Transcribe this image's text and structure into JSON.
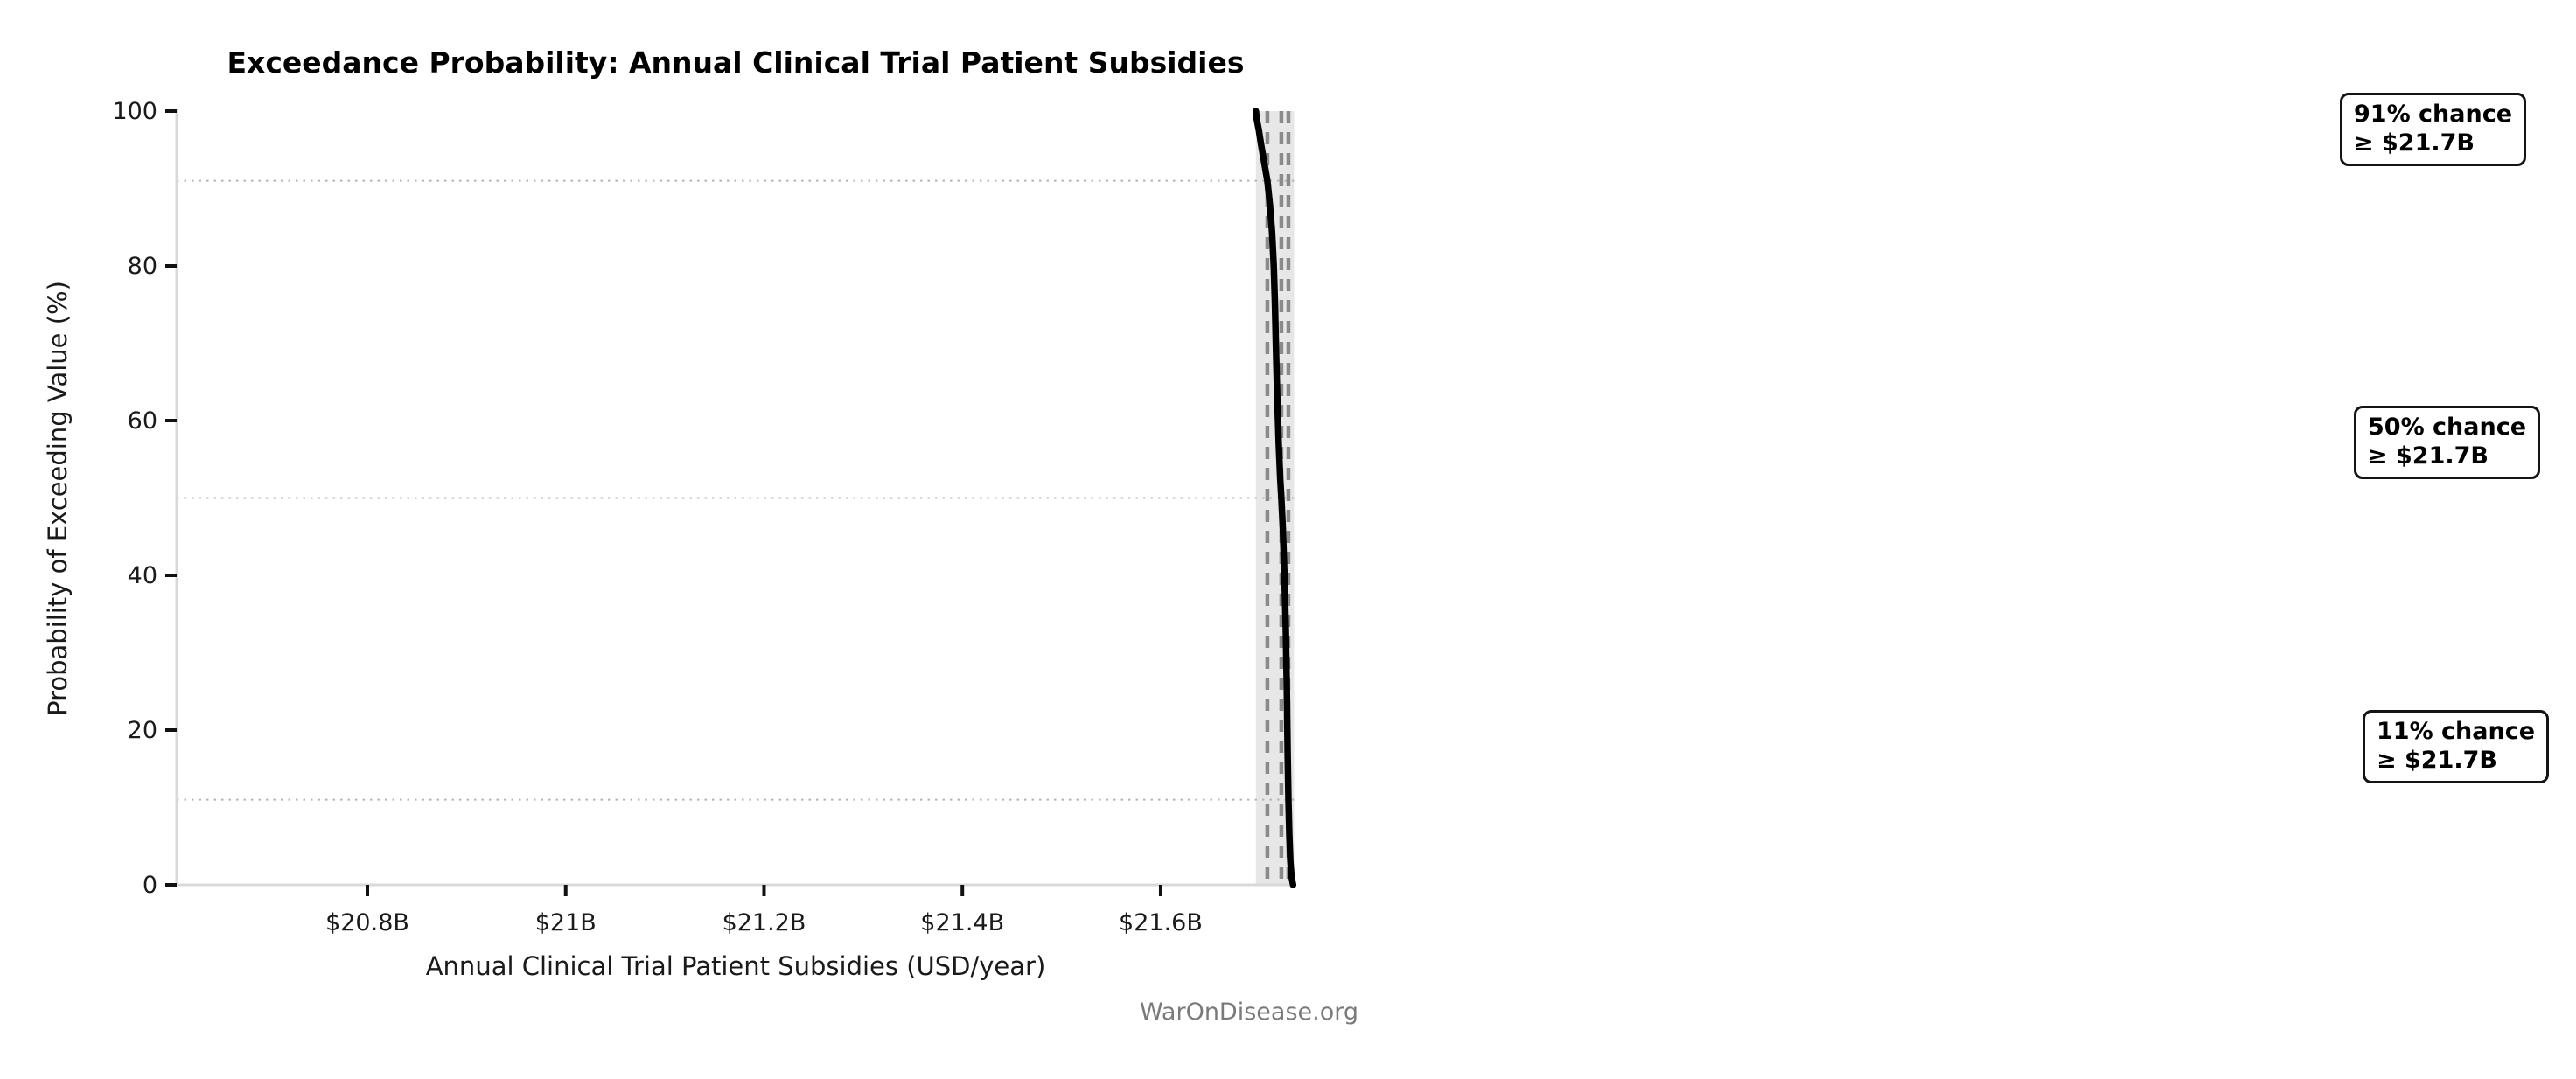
{
  "page": {
    "watermark": "WarOnDisease.org",
    "background_color": "#ffffff"
  },
  "chart_data": {
    "type": "line",
    "subtype": "exceedance-probability-curve",
    "title": "Exceedance Probability: Annual Clinical Trial Patient Subsidies",
    "xlabel": "Annual Clinical Trial Patient Subsidies (USD/year)",
    "ylabel": "Probability of Exceeding Value (%)",
    "x_unit": "USD billions per year",
    "xlim": [
      20.6077,
      21.735
    ],
    "ylim": [
      0,
      100
    ],
    "x_ticks": [
      {
        "value": 20.8,
        "label": "$20.8B"
      },
      {
        "value": 21.0,
        "label": "$21B"
      },
      {
        "value": 21.2,
        "label": "$21.2B"
      },
      {
        "value": 21.4,
        "label": "$21.4B"
      },
      {
        "value": 21.6,
        "label": "$21.6B"
      }
    ],
    "y_ticks": [
      {
        "value": 0,
        "label": "0"
      },
      {
        "value": 20,
        "label": "20"
      },
      {
        "value": 40,
        "label": "40"
      },
      {
        "value": 60,
        "label": "60"
      },
      {
        "value": 80,
        "label": "80"
      },
      {
        "value": 100,
        "label": "100"
      }
    ],
    "legend": "none",
    "grid": "dotted horizontal lines at annotated probabilities",
    "h_gridlines_pct": [
      91,
      50,
      11
    ],
    "v_reference_lines": [
      {
        "value_billion": 21.7076,
        "probability_pct": 91,
        "label": "$21.7B"
      },
      {
        "value_billion": 21.7217,
        "probability_pct": 50,
        "label": "$21.7B"
      },
      {
        "value_billion": 21.7288,
        "probability_pct": 11,
        "label": "$21.7B"
      }
    ],
    "uncertainty_band": {
      "from_billion": 21.696,
      "to_billion": 21.7345,
      "color": "#e7e7e7"
    },
    "series": [
      {
        "name": "exceedance-curve",
        "color": "#000000",
        "points_value_prob": [
          [
            21.696,
            100
          ],
          [
            21.6968,
            99
          ],
          [
            21.699,
            97.5
          ],
          [
            21.7015,
            95.5
          ],
          [
            21.7045,
            93.3
          ],
          [
            21.7076,
            91
          ],
          [
            21.71,
            88
          ],
          [
            21.7122,
            84.5
          ],
          [
            21.714,
            80
          ],
          [
            21.7152,
            75
          ],
          [
            21.7163,
            69
          ],
          [
            21.7175,
            63
          ],
          [
            21.719,
            57
          ],
          [
            21.7205,
            52.5
          ],
          [
            21.7217,
            50
          ],
          [
            21.7232,
            46
          ],
          [
            21.7248,
            40
          ],
          [
            21.7262,
            33
          ],
          [
            21.7272,
            25
          ],
          [
            21.728,
            17
          ],
          [
            21.7288,
            11
          ],
          [
            21.7297,
            6.5
          ],
          [
            21.7308,
            3
          ],
          [
            21.732,
            1
          ],
          [
            21.7335,
            0
          ]
        ]
      }
    ],
    "style_colors": {
      "curve": "#000000",
      "band": "#e7e7e7",
      "h_gridline": "#b5b5b5",
      "v_reference_line": "#8a8a8a",
      "spine": "#d9d9d9",
      "tick": "#111111",
      "tick_label": "#1a1a1a"
    }
  },
  "annotations": [
    {
      "line1": "91% chance",
      "line2": "≥ $21.7B"
    },
    {
      "line1": "50% chance",
      "line2": "≥ $21.7B"
    },
    {
      "line1": "11% chance",
      "line2": "≥ $21.7B"
    }
  ]
}
